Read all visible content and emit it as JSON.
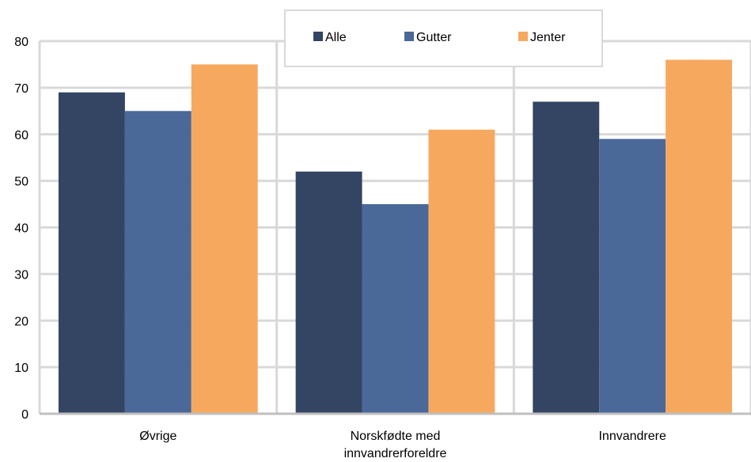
{
  "chart_data": {
    "type": "bar",
    "categories": [
      "Øvrige",
      "Norskfødte med innvandrerforeldre",
      "Innvandrere"
    ],
    "category_lines": [
      [
        "Øvrige"
      ],
      [
        "Norskfødte med",
        "innvandrerforeldre"
      ],
      [
        "Innvandrere"
      ]
    ],
    "series": [
      {
        "name": "Alle",
        "values": [
          69,
          52,
          67
        ],
        "color": "#334563"
      },
      {
        "name": "Gutter",
        "values": [
          65,
          45,
          59
        ],
        "color": "#4A6898"
      },
      {
        "name": "Jenter",
        "values": [
          75,
          61,
          76
        ],
        "color": "#F6A95E"
      }
    ],
    "ylim": [
      0,
      80
    ],
    "yticks": [
      0,
      10,
      20,
      30,
      40,
      50,
      60,
      70,
      80
    ],
    "title": "",
    "xlabel": "",
    "ylabel": "",
    "grid": true,
    "legend_position": "top-center",
    "colors": {
      "grid": "#D9D9D9",
      "axis": "#BFBFBF",
      "legend_border": "#D9D9D9"
    }
  }
}
